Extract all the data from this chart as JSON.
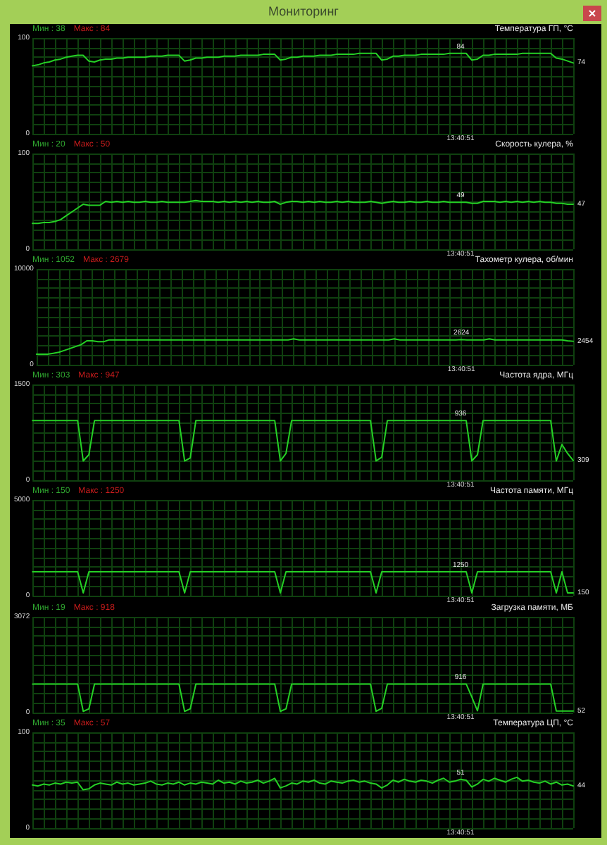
{
  "chart_data": [
    {
      "type": "line",
      "title": "Температура ГП, °C",
      "annotations": [
        "Мин : 38",
        "Макс : 84",
        "Мониторинг"
      ],
      "categories": [
        null,
        null,
        null,
        null,
        null,
        null,
        null,
        null,
        null,
        null,
        null,
        null,
        null,
        null,
        null,
        null,
        null,
        null,
        null,
        null,
        null,
        null,
        null,
        null,
        null,
        null,
        null,
        null,
        null,
        null,
        null,
        null,
        null,
        null,
        null,
        null,
        null,
        null,
        null,
        null,
        null,
        null,
        null,
        null,
        null,
        null,
        null,
        null,
        null,
        null,
        null,
        null,
        null,
        null,
        null,
        null,
        null,
        null,
        null,
        null,
        null,
        null,
        null,
        null,
        null,
        null,
        null,
        null,
        null,
        null,
        null,
        null,
        null,
        null,
        null,
        null,
        "13:40:51",
        null,
        null,
        null,
        null,
        null,
        null,
        null,
        null,
        null,
        null,
        null,
        null,
        null,
        null,
        null,
        null,
        null,
        null,
        null,
        null
      ],
      "values": [
        71,
        72,
        74,
        75,
        77,
        78,
        80,
        81,
        82,
        82,
        76,
        75,
        77,
        78,
        78,
        79,
        79,
        80,
        80,
        80,
        80,
        81,
        81,
        81,
        82,
        82,
        82,
        76,
        77,
        79,
        79,
        80,
        80,
        80,
        81,
        81,
        81,
        82,
        82,
        82,
        82,
        83,
        83,
        83,
        77,
        78,
        80,
        80,
        81,
        81,
        81,
        82,
        82,
        82,
        83,
        83,
        83,
        83,
        84,
        84,
        84,
        84,
        77,
        78,
        81,
        81,
        82,
        82,
        82,
        83,
        83,
        83,
        83,
        83,
        84,
        84,
        84,
        84,
        77,
        78,
        82,
        82,
        83,
        83,
        83,
        83,
        83,
        84,
        84,
        84,
        84,
        84,
        84,
        79,
        78,
        76,
        74
      ],
      "value_labels": [
        null,
        null,
        null,
        null,
        null,
        null,
        null,
        null,
        null,
        null,
        null,
        null,
        null,
        null,
        null,
        null,
        null,
        null,
        null,
        null,
        null,
        null,
        null,
        null,
        null,
        null,
        null,
        null,
        null,
        null,
        null,
        null,
        null,
        null,
        null,
        null,
        null,
        null,
        null,
        null,
        null,
        null,
        null,
        null,
        null,
        null,
        null,
        null,
        null,
        null,
        null,
        null,
        null,
        null,
        null,
        null,
        null,
        null,
        null,
        null,
        null,
        null,
        null,
        null,
        null,
        null,
        null,
        null,
        null,
        null,
        null,
        null,
        null,
        null,
        null,
        null,
        "84",
        null,
        null,
        null,
        null,
        null,
        null,
        null,
        null,
        null,
        null,
        null,
        null,
        null,
        null,
        null,
        null,
        null,
        null,
        null,
        "74"
      ],
      "color": "#25d025",
      "ylim": [
        0,
        100
      ],
      "yticks": [
        0,
        {
          "value": 10,
          "label": null
        },
        {
          "value": 20,
          "label": null
        },
        {
          "value": 30,
          "label": null
        },
        {
          "value": 40,
          "label": null
        },
        {
          "value": 50,
          "label": null
        },
        {
          "value": 60,
          "label": null
        },
        {
          "value": 70,
          "label": null
        },
        {
          "value": 80,
          "label": null
        },
        {
          "value": 90,
          "label": null
        },
        100
      ],
      "grid": true
    },
    {
      "type": "line",
      "title": "Скорость кулера, %",
      "annotations": [
        "Мин : 20",
        "Макс : 50"
      ],
      "categories": [
        null,
        null,
        null,
        null,
        null,
        null,
        null,
        null,
        null,
        null,
        null,
        null,
        null,
        null,
        null,
        null,
        null,
        null,
        null,
        null,
        null,
        null,
        null,
        null,
        null,
        null,
        null,
        null,
        null,
        null,
        null,
        null,
        null,
        null,
        null,
        null,
        null,
        null,
        null,
        null,
        null,
        null,
        null,
        null,
        null,
        null,
        null,
        null,
        null,
        null,
        null,
        null,
        null,
        null,
        null,
        null,
        null,
        null,
        null,
        null,
        null,
        null,
        null,
        null,
        null,
        null,
        null,
        null,
        null,
        null,
        null,
        null,
        null,
        null,
        null,
        null,
        "13:40:51",
        null,
        null,
        null,
        null,
        null,
        null,
        null,
        null,
        null,
        null,
        null,
        null,
        null,
        null,
        null,
        null,
        null,
        null,
        null,
        null
      ],
      "values": [
        27,
        27,
        28,
        28,
        29,
        31,
        35,
        39,
        43,
        47,
        46,
        46,
        46,
        50,
        49,
        50,
        49,
        50,
        49,
        49,
        50,
        49,
        49,
        50,
        49,
        49,
        49,
        49,
        50,
        51,
        50,
        50,
        50,
        49,
        50,
        49,
        50,
        49,
        50,
        49,
        50,
        49,
        49,
        50,
        47,
        49,
        50,
        50,
        49,
        50,
        49,
        50,
        49,
        49,
        50,
        49,
        50,
        49,
        49,
        49,
        50,
        49,
        48,
        49,
        50,
        49,
        49,
        50,
        49,
        49,
        50,
        49,
        49,
        50,
        49,
        49,
        49,
        49,
        48,
        48,
        50,
        50,
        50,
        49,
        50,
        49,
        50,
        49,
        50,
        49,
        50,
        49,
        49,
        48,
        48,
        47,
        47
      ],
      "value_labels": [
        null,
        null,
        null,
        null,
        null,
        null,
        null,
        null,
        null,
        null,
        null,
        null,
        null,
        null,
        null,
        null,
        null,
        null,
        null,
        null,
        null,
        null,
        null,
        null,
        null,
        null,
        null,
        null,
        null,
        null,
        null,
        null,
        null,
        null,
        null,
        null,
        null,
        null,
        null,
        null,
        null,
        null,
        null,
        null,
        null,
        null,
        null,
        null,
        null,
        null,
        null,
        null,
        null,
        null,
        null,
        null,
        null,
        null,
        null,
        null,
        null,
        null,
        null,
        null,
        null,
        null,
        null,
        null,
        null,
        null,
        null,
        null,
        null,
        null,
        null,
        null,
        "49",
        null,
        null,
        null,
        null,
        null,
        null,
        null,
        null,
        null,
        null,
        null,
        null,
        null,
        null,
        null,
        null,
        null,
        null,
        null,
        "47"
      ],
      "color": "#25d025",
      "ylim": [
        0,
        100
      ],
      "yticks": [
        0,
        {
          "value": 10,
          "label": null
        },
        {
          "value": 20,
          "label": null
        },
        {
          "value": 30,
          "label": null
        },
        {
          "value": 40,
          "label": null
        },
        {
          "value": 50,
          "label": null
        },
        {
          "value": 60,
          "label": null
        },
        {
          "value": 70,
          "label": null
        },
        {
          "value": 80,
          "label": null
        },
        {
          "value": 90,
          "label": null
        },
        100
      ],
      "grid": true
    },
    {
      "type": "line",
      "title": "Тахометр кулера, об/мин",
      "annotations": [
        "Мин : 1052",
        "Макс : 2679"
      ],
      "categories": [
        null,
        null,
        null,
        null,
        null,
        null,
        null,
        null,
        null,
        null,
        null,
        null,
        null,
        null,
        null,
        null,
        null,
        null,
        null,
        null,
        null,
        null,
        null,
        null,
        null,
        null,
        null,
        null,
        null,
        null,
        null,
        null,
        null,
        null,
        null,
        null,
        null,
        null,
        null,
        null,
        null,
        null,
        null,
        null,
        null,
        null,
        null,
        null,
        null,
        null,
        null,
        null,
        null,
        null,
        null,
        null,
        null,
        null,
        null,
        null,
        null,
        null,
        null,
        null,
        null,
        null,
        null,
        null,
        null,
        null,
        null,
        null,
        null,
        null,
        null,
        null,
        "13:40:51",
        null,
        null,
        null,
        null,
        null,
        null,
        null,
        null,
        null,
        null,
        null,
        null,
        null,
        null,
        null,
        null,
        null,
        null,
        null,
        null
      ],
      "values": [
        1100,
        1100,
        1100,
        1200,
        1300,
        1500,
        1700,
        1900,
        2100,
        2500,
        2500,
        2400,
        2400,
        2600,
        2600,
        2600,
        2600,
        2600,
        2600,
        2600,
        2600,
        2600,
        2600,
        2600,
        2600,
        2600,
        2600,
        2600,
        2600,
        2600,
        2600,
        2600,
        2600,
        2600,
        2600,
        2600,
        2600,
        2600,
        2600,
        2600,
        2600,
        2600,
        2600,
        2600,
        2600,
        2600,
        2700,
        2600,
        2600,
        2600,
        2600,
        2600,
        2600,
        2600,
        2600,
        2600,
        2600,
        2600,
        2600,
        2600,
        2600,
        2600,
        2600,
        2600,
        2700,
        2600,
        2600,
        2600,
        2600,
        2600,
        2600,
        2600,
        2600,
        2600,
        2600,
        2600,
        2624,
        2600,
        2600,
        2600,
        2600,
        2700,
        2600,
        2600,
        2600,
        2600,
        2600,
        2600,
        2600,
        2600,
        2600,
        2600,
        2600,
        2600,
        2600,
        2500,
        2454
      ],
      "value_labels": [
        null,
        null,
        null,
        null,
        null,
        null,
        null,
        null,
        null,
        null,
        null,
        null,
        null,
        null,
        null,
        null,
        null,
        null,
        null,
        null,
        null,
        null,
        null,
        null,
        null,
        null,
        null,
        null,
        null,
        null,
        null,
        null,
        null,
        null,
        null,
        null,
        null,
        null,
        null,
        null,
        null,
        null,
        null,
        null,
        null,
        null,
        null,
        null,
        null,
        null,
        null,
        null,
        null,
        null,
        null,
        null,
        null,
        null,
        null,
        null,
        null,
        null,
        null,
        null,
        null,
        null,
        null,
        null,
        null,
        null,
        null,
        null,
        null,
        null,
        null,
        null,
        "2624",
        null,
        null,
        null,
        null,
        null,
        null,
        null,
        null,
        null,
        null,
        null,
        null,
        null,
        null,
        null,
        null,
        null,
        null,
        null,
        "2454"
      ],
      "color": "#25d025",
      "ylim": [
        0,
        10000
      ],
      "yticks": [
        0,
        {
          "value": 1000,
          "label": null
        },
        {
          "value": 2000,
          "label": null
        },
        {
          "value": 3000,
          "label": null
        },
        {
          "value": 4000,
          "label": null
        },
        {
          "value": 5000,
          "label": null
        },
        {
          "value": 6000,
          "label": null
        },
        {
          "value": 7000,
          "label": null
        },
        {
          "value": 8000,
          "label": null
        },
        {
          "value": 9000,
          "label": null
        },
        10000
      ],
      "grid": true
    },
    {
      "type": "line",
      "title": "Частота ядра, МГц",
      "annotations": [
        "Мин : 303",
        "Макс : 947"
      ],
      "categories": [
        null,
        null,
        null,
        null,
        null,
        null,
        null,
        null,
        null,
        null,
        null,
        null,
        null,
        null,
        null,
        null,
        null,
        null,
        null,
        null,
        null,
        null,
        null,
        null,
        null,
        null,
        null,
        null,
        null,
        null,
        null,
        null,
        null,
        null,
        null,
        null,
        null,
        null,
        null,
        null,
        null,
        null,
        null,
        null,
        null,
        null,
        null,
        null,
        null,
        null,
        null,
        null,
        null,
        null,
        null,
        null,
        null,
        null,
        null,
        null,
        null,
        null,
        null,
        null,
        null,
        null,
        null,
        null,
        null,
        null,
        null,
        null,
        null,
        null,
        null,
        null,
        "13:40:51",
        null,
        null,
        null,
        null,
        null,
        null,
        null,
        null,
        null,
        null,
        null,
        null,
        null,
        null,
        null,
        null,
        null,
        null,
        null,
        null
      ],
      "values": [
        936,
        936,
        936,
        936,
        936,
        936,
        936,
        936,
        936,
        303,
        400,
        936,
        936,
        936,
        936,
        936,
        936,
        936,
        936,
        936,
        936,
        936,
        936,
        936,
        936,
        936,
        936,
        303,
        350,
        936,
        936,
        936,
        936,
        936,
        936,
        936,
        936,
        936,
        936,
        936,
        936,
        936,
        936,
        936,
        303,
        420,
        936,
        936,
        936,
        936,
        936,
        936,
        936,
        936,
        936,
        936,
        936,
        936,
        936,
        936,
        936,
        303,
        360,
        936,
        936,
        936,
        936,
        936,
        936,
        936,
        936,
        936,
        936,
        936,
        936,
        936,
        936,
        936,
        303,
        400,
        936,
        936,
        936,
        936,
        936,
        936,
        936,
        936,
        936,
        936,
        936,
        936,
        936,
        303,
        560,
        420,
        309
      ],
      "value_labels": [
        null,
        null,
        null,
        null,
        null,
        null,
        null,
        null,
        null,
        null,
        null,
        null,
        null,
        null,
        null,
        null,
        null,
        null,
        null,
        null,
        null,
        null,
        null,
        null,
        null,
        null,
        null,
        null,
        null,
        null,
        null,
        null,
        null,
        null,
        null,
        null,
        null,
        null,
        null,
        null,
        null,
        null,
        null,
        null,
        null,
        null,
        null,
        null,
        null,
        null,
        null,
        null,
        null,
        null,
        null,
        null,
        null,
        null,
        null,
        null,
        null,
        null,
        null,
        null,
        null,
        null,
        null,
        null,
        null,
        null,
        null,
        null,
        null,
        null,
        null,
        null,
        "936",
        null,
        null,
        null,
        null,
        null,
        null,
        null,
        null,
        null,
        null,
        null,
        null,
        null,
        null,
        null,
        null,
        null,
        null,
        null,
        "309"
      ],
      "color": "#25d025",
      "ylim": [
        0,
        1500
      ],
      "yticks": [
        0,
        {
          "value": 150,
          "label": null
        },
        {
          "value": 300,
          "label": null
        },
        {
          "value": 450,
          "label": null
        },
        {
          "value": 600,
          "label": null
        },
        {
          "value": 750,
          "label": null
        },
        {
          "value": 900,
          "label": null
        },
        {
          "value": 1050,
          "label": null
        },
        {
          "value": 1200,
          "label": null
        },
        {
          "value": 1350,
          "label": null
        },
        1500
      ],
      "grid": true
    },
    {
      "type": "line",
      "title": "Частота памяти, МГц",
      "annotations": [
        "Мин : 150",
        "Макс : 1250"
      ],
      "categories": [
        null,
        null,
        null,
        null,
        null,
        null,
        null,
        null,
        null,
        null,
        null,
        null,
        null,
        null,
        null,
        null,
        null,
        null,
        null,
        null,
        null,
        null,
        null,
        null,
        null,
        null,
        null,
        null,
        null,
        null,
        null,
        null,
        null,
        null,
        null,
        null,
        null,
        null,
        null,
        null,
        null,
        null,
        null,
        null,
        null,
        null,
        null,
        null,
        null,
        null,
        null,
        null,
        null,
        null,
        null,
        null,
        null,
        null,
        null,
        null,
        null,
        null,
        null,
        null,
        null,
        null,
        null,
        null,
        null,
        null,
        null,
        null,
        null,
        null,
        null,
        null,
        "13:40:51",
        null,
        null,
        null,
        null,
        null,
        null,
        null,
        null,
        null,
        null,
        null,
        null,
        null,
        null,
        null,
        null,
        null,
        null,
        null,
        null
      ],
      "values": [
        1250,
        1250,
        1250,
        1250,
        1250,
        1250,
        1250,
        1250,
        1250,
        150,
        1250,
        1250,
        1250,
        1250,
        1250,
        1250,
        1250,
        1250,
        1250,
        1250,
        1250,
        1250,
        1250,
        1250,
        1250,
        1250,
        1250,
        150,
        1250,
        1250,
        1250,
        1250,
        1250,
        1250,
        1250,
        1250,
        1250,
        1250,
        1250,
        1250,
        1250,
        1250,
        1250,
        1250,
        150,
        1250,
        1250,
        1250,
        1250,
        1250,
        1250,
        1250,
        1250,
        1250,
        1250,
        1250,
        1250,
        1250,
        1250,
        1250,
        1250,
        150,
        1250,
        1250,
        1250,
        1250,
        1250,
        1250,
        1250,
        1250,
        1250,
        1250,
        1250,
        1250,
        1250,
        1250,
        1250,
        1250,
        150,
        1250,
        1250,
        1250,
        1250,
        1250,
        1250,
        1250,
        1250,
        1250,
        1250,
        1250,
        1250,
        1250,
        1250,
        150,
        1250,
        150,
        150
      ],
      "value_labels": [
        null,
        null,
        null,
        null,
        null,
        null,
        null,
        null,
        null,
        null,
        null,
        null,
        null,
        null,
        null,
        null,
        null,
        null,
        null,
        null,
        null,
        null,
        null,
        null,
        null,
        null,
        null,
        null,
        null,
        null,
        null,
        null,
        null,
        null,
        null,
        null,
        null,
        null,
        null,
        null,
        null,
        null,
        null,
        null,
        null,
        null,
        null,
        null,
        null,
        null,
        null,
        null,
        null,
        null,
        null,
        null,
        null,
        null,
        null,
        null,
        null,
        null,
        null,
        null,
        null,
        null,
        null,
        null,
        null,
        null,
        null,
        null,
        null,
        null,
        null,
        null,
        "1250",
        null,
        null,
        null,
        null,
        null,
        null,
        null,
        null,
        null,
        null,
        null,
        null,
        null,
        null,
        null,
        null,
        null,
        null,
        null,
        "150"
      ],
      "color": "#25d025",
      "ylim": [
        0,
        5000
      ],
      "yticks": [
        0,
        {
          "value": 500,
          "label": null
        },
        {
          "value": 1000,
          "label": null
        },
        {
          "value": 1500,
          "label": null
        },
        {
          "value": 2000,
          "label": null
        },
        {
          "value": 2500,
          "label": null
        },
        {
          "value": 3000,
          "label": null
        },
        {
          "value": 3500,
          "label": null
        },
        {
          "value": 4000,
          "label": null
        },
        {
          "value": 4500,
          "label": null
        },
        5000
      ],
      "grid": true
    },
    {
      "type": "line",
      "title": "Загрузка памяти, МБ",
      "annotations": [
        "Мин : 19",
        "Макс : 918"
      ],
      "categories": [
        null,
        null,
        null,
        null,
        null,
        null,
        null,
        null,
        null,
        null,
        null,
        null,
        null,
        null,
        null,
        null,
        null,
        null,
        null,
        null,
        null,
        null,
        null,
        null,
        null,
        null,
        null,
        null,
        null,
        null,
        null,
        null,
        null,
        null,
        null,
        null,
        null,
        null,
        null,
        null,
        null,
        null,
        null,
        null,
        null,
        null,
        null,
        null,
        null,
        null,
        null,
        null,
        null,
        null,
        null,
        null,
        null,
        null,
        null,
        null,
        null,
        null,
        null,
        null,
        null,
        null,
        null,
        null,
        null,
        null,
        null,
        null,
        null,
        null,
        null,
        null,
        "13:40:51",
        null,
        null,
        null,
        null,
        null,
        null,
        null,
        null,
        null,
        null,
        null,
        null,
        null,
        null,
        null,
        null,
        null,
        null,
        null,
        null
      ],
      "values": [
        916,
        916,
        916,
        916,
        916,
        916,
        916,
        916,
        916,
        40,
        120,
        916,
        916,
        916,
        916,
        916,
        916,
        916,
        916,
        916,
        916,
        916,
        916,
        916,
        916,
        916,
        916,
        40,
        120,
        916,
        916,
        916,
        916,
        916,
        916,
        916,
        916,
        916,
        916,
        916,
        916,
        916,
        916,
        916,
        40,
        120,
        916,
        916,
        916,
        916,
        916,
        916,
        916,
        916,
        916,
        916,
        916,
        916,
        916,
        916,
        916,
        40,
        140,
        916,
        916,
        916,
        916,
        916,
        916,
        916,
        916,
        916,
        916,
        916,
        916,
        916,
        916,
        916,
        500,
        60,
        916,
        916,
        916,
        916,
        916,
        916,
        916,
        916,
        916,
        916,
        916,
        916,
        916,
        52,
        52,
        52,
        52
      ],
      "value_labels": [
        null,
        null,
        null,
        null,
        null,
        null,
        null,
        null,
        null,
        null,
        null,
        null,
        null,
        null,
        null,
        null,
        null,
        null,
        null,
        null,
        null,
        null,
        null,
        null,
        null,
        null,
        null,
        null,
        null,
        null,
        null,
        null,
        null,
        null,
        null,
        null,
        null,
        null,
        null,
        null,
        null,
        null,
        null,
        null,
        null,
        null,
        null,
        null,
        null,
        null,
        null,
        null,
        null,
        null,
        null,
        null,
        null,
        null,
        null,
        null,
        null,
        null,
        null,
        null,
        null,
        null,
        null,
        null,
        null,
        null,
        null,
        null,
        null,
        null,
        null,
        null,
        "916",
        null,
        null,
        null,
        null,
        null,
        null,
        null,
        null,
        null,
        null,
        null,
        null,
        null,
        null,
        null,
        null,
        null,
        null,
        null,
        "52"
      ],
      "color": "#25d025",
      "ylim": [
        0,
        3072
      ],
      "yticks": [
        0,
        {
          "value": 307.2,
          "label": null
        },
        {
          "value": 614.4,
          "label": null
        },
        {
          "value": 921.6,
          "label": null
        },
        {
          "value": 1228.8,
          "label": null
        },
        {
          "value": 1536,
          "label": null
        },
        {
          "value": 1843.2,
          "label": null
        },
        {
          "value": 2150.4,
          "label": null
        },
        {
          "value": 2457.6,
          "label": null
        },
        {
          "value": 2764.8,
          "label": null
        },
        3072
      ],
      "grid": true
    },
    {
      "type": "line",
      "title": "Температура ЦП, °C",
      "annotations": [
        "Мин : 35",
        "Макс : 57"
      ],
      "categories": [
        null,
        null,
        null,
        null,
        null,
        null,
        null,
        null,
        null,
        null,
        null,
        null,
        null,
        null,
        null,
        null,
        null,
        null,
        null,
        null,
        null,
        null,
        null,
        null,
        null,
        null,
        null,
        null,
        null,
        null,
        null,
        null,
        null,
        null,
        null,
        null,
        null,
        null,
        null,
        null,
        null,
        null,
        null,
        null,
        null,
        null,
        null,
        null,
        null,
        null,
        null,
        null,
        null,
        null,
        null,
        null,
        null,
        null,
        null,
        null,
        null,
        null,
        null,
        null,
        null,
        null,
        null,
        null,
        null,
        null,
        null,
        null,
        null,
        null,
        null,
        null,
        "13:40:51",
        null,
        null,
        null,
        null,
        null,
        null,
        null,
        null,
        null,
        null,
        null,
        null,
        null,
        null,
        null,
        null,
        null,
        null,
        null,
        null
      ],
      "values": [
        45,
        44,
        46,
        45,
        47,
        46,
        48,
        47,
        48,
        40,
        41,
        45,
        47,
        46,
        45,
        48,
        46,
        47,
        45,
        46,
        47,
        49,
        46,
        45,
        47,
        46,
        48,
        45,
        47,
        46,
        48,
        47,
        46,
        50,
        47,
        48,
        46,
        49,
        47,
        48,
        50,
        47,
        49,
        52,
        42,
        44,
        47,
        46,
        49,
        48,
        50,
        47,
        46,
        49,
        48,
        47,
        49,
        50,
        48,
        49,
        47,
        46,
        42,
        45,
        50,
        48,
        51,
        49,
        48,
        50,
        49,
        47,
        50,
        52,
        48,
        49,
        51,
        50,
        43,
        46,
        51,
        49,
        52,
        50,
        48,
        51,
        53,
        49,
        50,
        48,
        47,
        49,
        46,
        48,
        45,
        46,
        44
      ],
      "value_labels": [
        null,
        null,
        null,
        null,
        null,
        null,
        null,
        null,
        null,
        null,
        null,
        null,
        null,
        null,
        null,
        null,
        null,
        null,
        null,
        null,
        null,
        null,
        null,
        null,
        null,
        null,
        null,
        null,
        null,
        null,
        null,
        null,
        null,
        null,
        null,
        null,
        null,
        null,
        null,
        null,
        null,
        null,
        null,
        null,
        null,
        null,
        null,
        null,
        null,
        null,
        null,
        null,
        null,
        null,
        null,
        null,
        null,
        null,
        null,
        null,
        null,
        null,
        null,
        null,
        null,
        null,
        null,
        null,
        null,
        null,
        null,
        null,
        null,
        null,
        null,
        null,
        "51",
        null,
        null,
        null,
        null,
        null,
        null,
        null,
        null,
        null,
        null,
        null,
        null,
        null,
        null,
        null,
        null,
        null,
        null,
        null,
        "44"
      ],
      "color": "#25d025",
      "ylim": [
        0,
        100
      ],
      "yticks": [
        0,
        {
          "value": 10,
          "label": null
        },
        {
          "value": 20,
          "label": null
        },
        {
          "value": 30,
          "label": null
        },
        {
          "value": 40,
          "label": null
        },
        {
          "value": 50,
          "label": null
        },
        {
          "value": 60,
          "label": null
        },
        {
          "value": 70,
          "label": null
        },
        {
          "value": 80,
          "label": null
        },
        {
          "value": 90,
          "label": null
        },
        100
      ],
      "grid": true
    }
  ]
}
